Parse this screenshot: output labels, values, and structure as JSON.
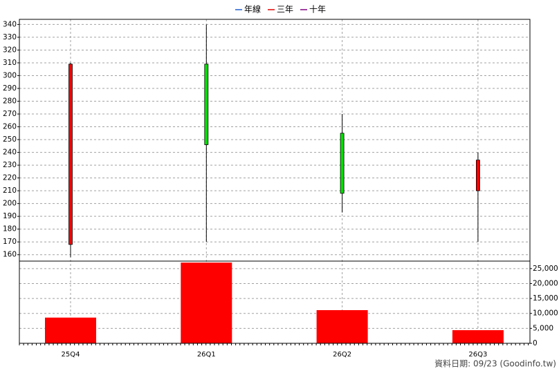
{
  "chart_data": {
    "type": "candlestick",
    "legend": [
      {
        "name": "年線",
        "color": "#1f5fd0"
      },
      {
        "name": "三年",
        "color": "#e00000"
      },
      {
        "name": "十年",
        "color": "#800080"
      }
    ],
    "categories": [
      "25Q4",
      "26Q1",
      "26Q2",
      "26Q3"
    ],
    "open": [
      168,
      309,
      255,
      210
    ],
    "high": [
      310,
      340,
      270,
      240
    ],
    "low": [
      158,
      170,
      193,
      170
    ],
    "close": [
      309,
      246,
      208,
      234
    ],
    "up_color": "#ff0000",
    "down_color": "#00e000",
    "ylim": [
      155,
      344
    ],
    "yticks": [
      160,
      170,
      180,
      190,
      200,
      210,
      220,
      230,
      240,
      250,
      260,
      270,
      280,
      290,
      300,
      310,
      320,
      330,
      340
    ],
    "volume": [
      8600,
      27000,
      11100,
      4400
    ],
    "volume_color": "#ff0000",
    "y2lim": [
      0,
      27500
    ],
    "y2ticks": [
      0,
      {
        "value": 5000,
        "label": "5,000"
      },
      {
        "value": 10000,
        "label": "10,000"
      },
      {
        "value": 15000,
        "label": "15,000"
      },
      {
        "value": 20000,
        "label": "20,000"
      },
      {
        "value": 25000,
        "label": "25,000"
      }
    ],
    "grid": true,
    "footer": "資料日期: 09/23  (Goodinfo.tw)"
  }
}
